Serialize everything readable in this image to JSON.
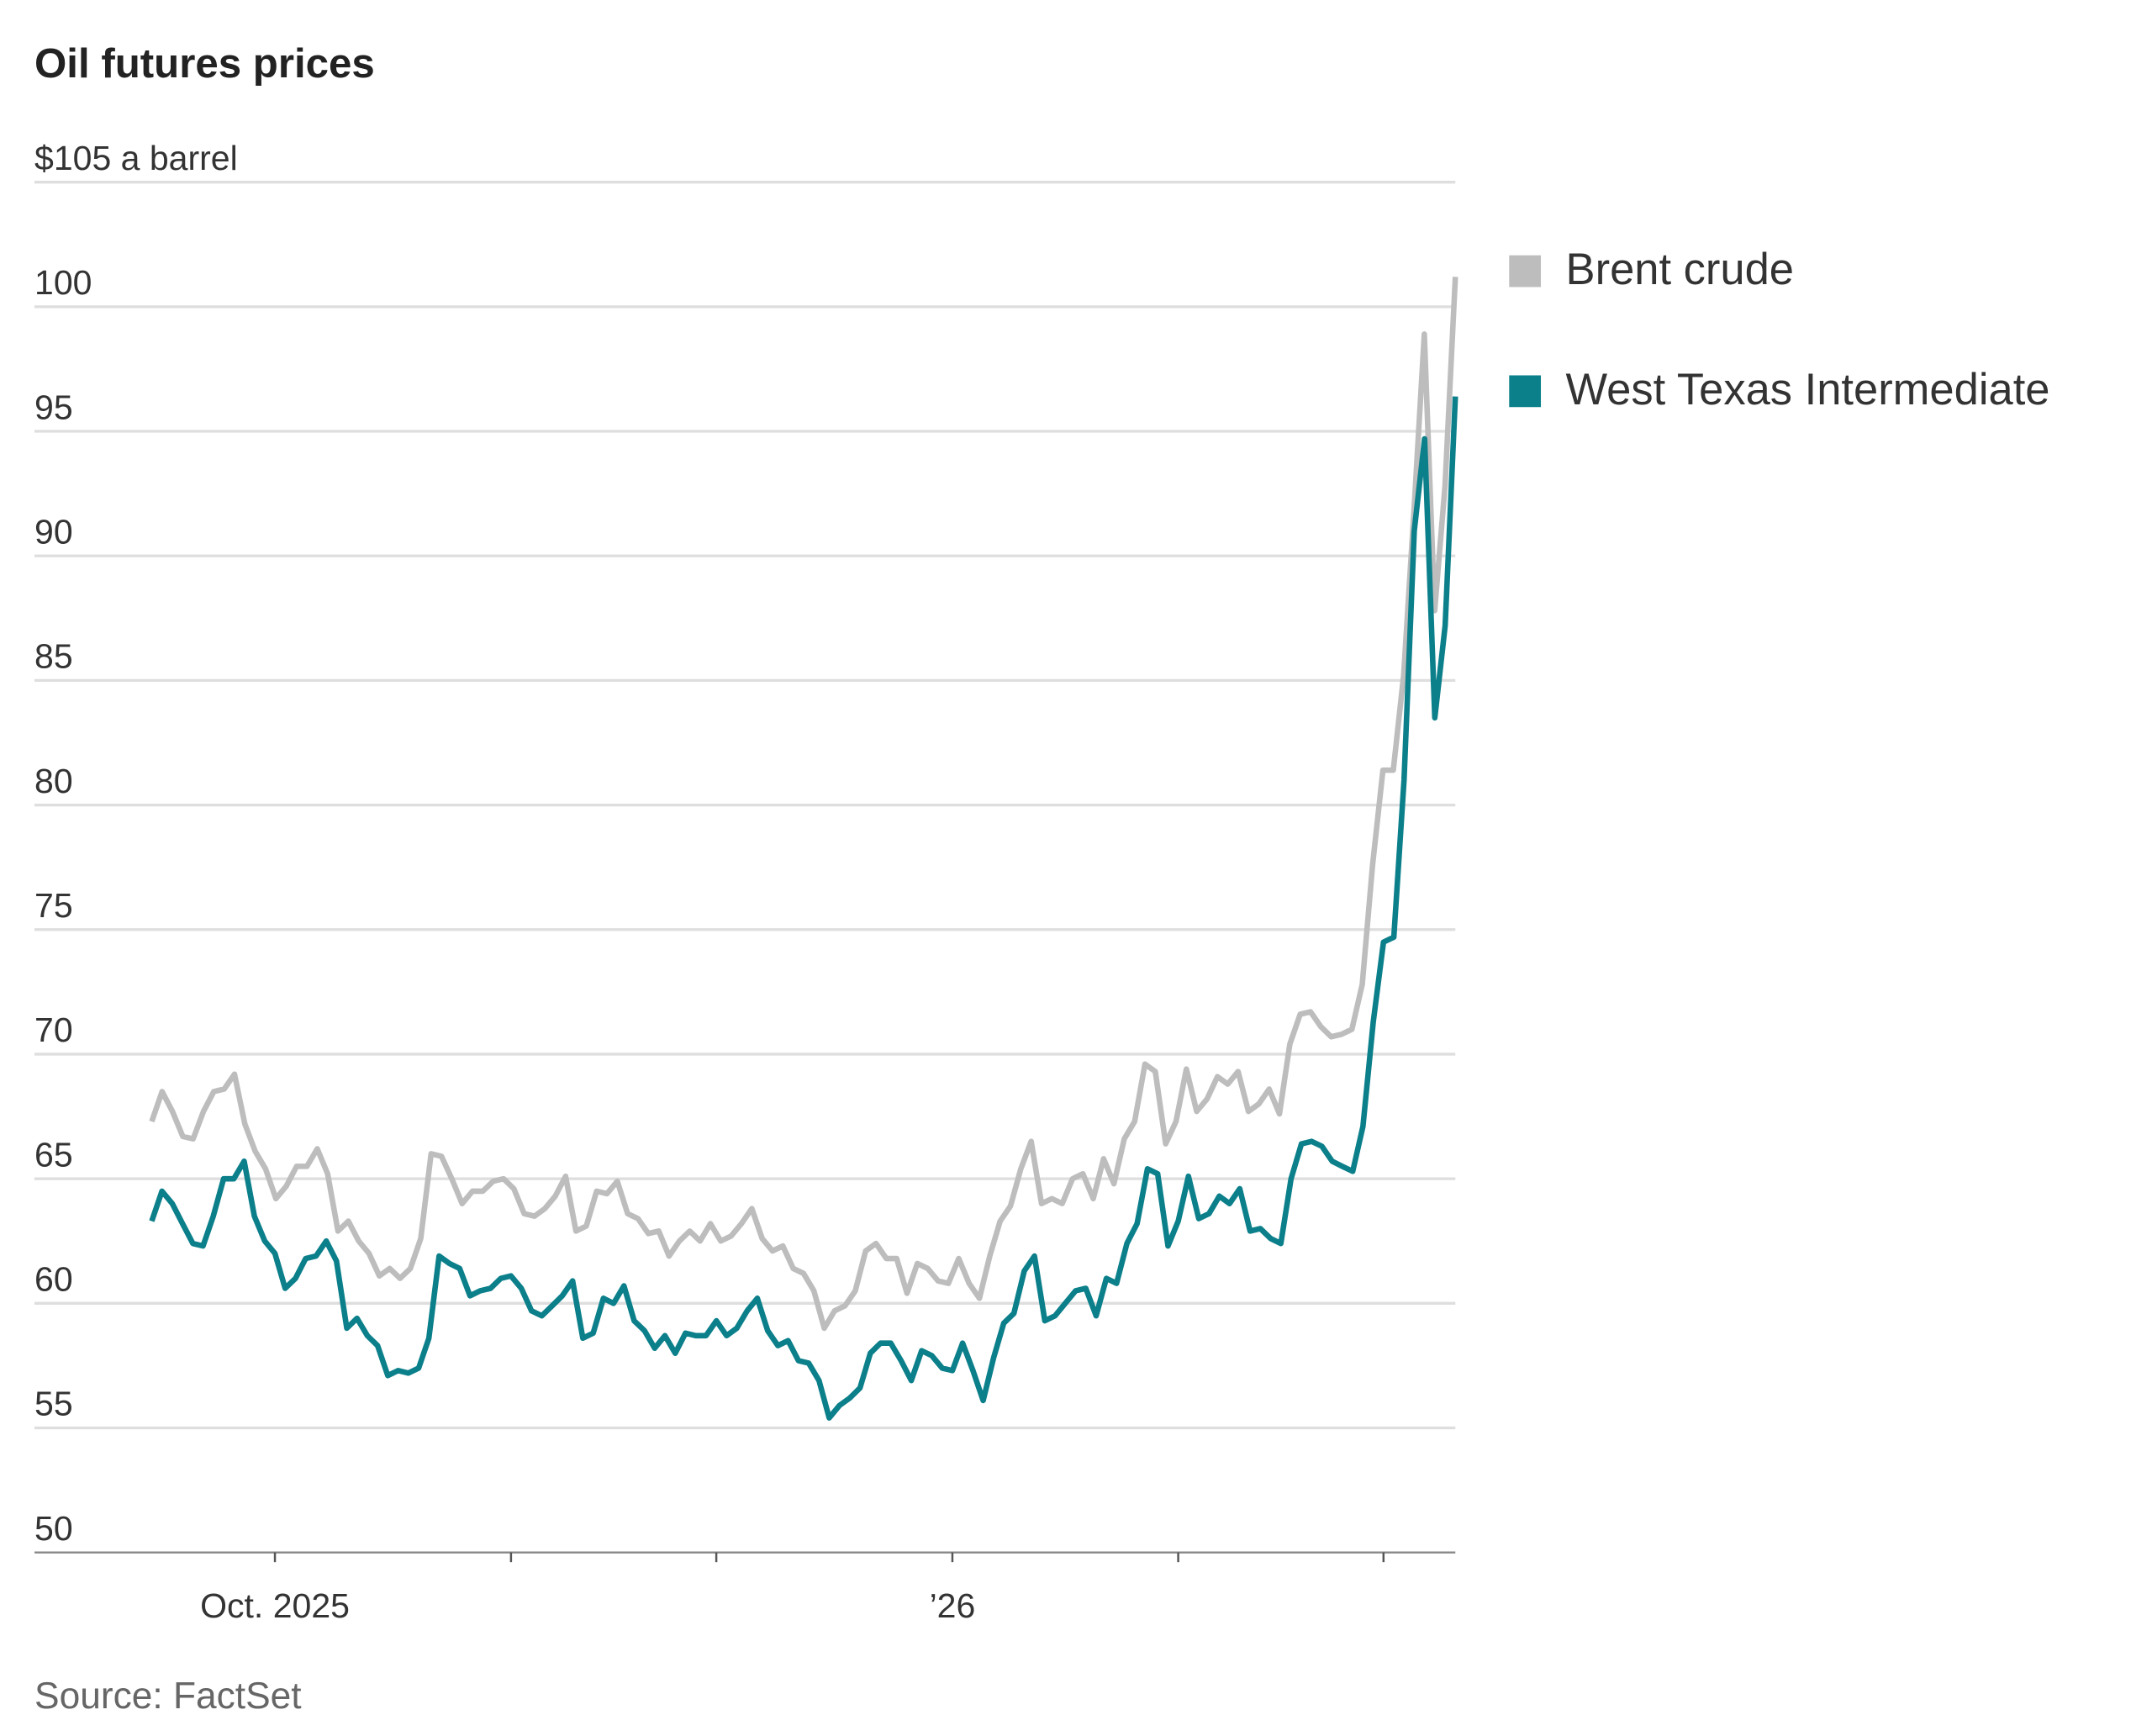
{
  "chart_data": {
    "type": "line",
    "title": "Oil futures prices",
    "ylabel": "$105 a barrel",
    "source": "Source: FactSet",
    "ylim": [
      50,
      105
    ],
    "yticks": [
      {
        "value": 105,
        "label": "$105 a barrel"
      },
      {
        "value": 100,
        "label": "100"
      },
      {
        "value": 95,
        "label": "95"
      },
      {
        "value": 90,
        "label": "90"
      },
      {
        "value": 85,
        "label": "85"
      },
      {
        "value": 80,
        "label": "80"
      },
      {
        "value": 75,
        "label": "75"
      },
      {
        "value": 70,
        "label": "70"
      },
      {
        "value": 65,
        "label": "65"
      },
      {
        "value": 60,
        "label": "60"
      },
      {
        "value": 55,
        "label": "55"
      },
      {
        "value": 50,
        "label": "50"
      }
    ],
    "xticks": [
      {
        "index": 12,
        "label": "Oct. 2025"
      },
      {
        "index": 35,
        "label": ""
      },
      {
        "index": 55,
        "label": ""
      },
      {
        "index": 78,
        "label": "’26"
      },
      {
        "index": 100,
        "label": ""
      },
      {
        "index": 120,
        "label": ""
      }
    ],
    "grid": true,
    "legend_position": "right",
    "series": [
      {
        "name": "Brent crude",
        "color": "#bdbdbd",
        "values": [
          67.3,
          68.5,
          67.7,
          66.7,
          66.6,
          67.7,
          68.5,
          68.6,
          69.2,
          67.2,
          66.1,
          65.4,
          64.2,
          64.7,
          65.5,
          65.5,
          66.2,
          65.2,
          62.9,
          63.3,
          62.5,
          62.0,
          61.1,
          61.4,
          61.0,
          61.4,
          62.6,
          66.0,
          65.9,
          65.0,
          64.0,
          64.5,
          64.5,
          64.9,
          65.0,
          64.6,
          63.6,
          63.5,
          63.8,
          64.3,
          65.1,
          62.9,
          63.1,
          64.5,
          64.4,
          64.9,
          63.6,
          63.4,
          62.8,
          62.9,
          61.9,
          62.5,
          62.9,
          62.5,
          63.2,
          62.5,
          62.7,
          63.2,
          63.8,
          62.6,
          62.1,
          62.3,
          61.4,
          61.2,
          60.5,
          59.0,
          59.7,
          59.9,
          60.5,
          62.1,
          62.4,
          61.8,
          61.8,
          60.4,
          61.6,
          61.4,
          60.9,
          60.8,
          61.8,
          60.8,
          60.2,
          61.9,
          63.3,
          63.9,
          65.4,
          66.5,
          64.0,
          64.2,
          64.0,
          65.0,
          65.2,
          64.2,
          65.8,
          64.8,
          66.6,
          67.3,
          69.6,
          69.3,
          66.4,
          67.3,
          69.4,
          67.7,
          68.2,
          69.1,
          68.8,
          69.3,
          67.7,
          68.0,
          68.6,
          67.6,
          70.4,
          71.6,
          71.7,
          71.1,
          70.7,
          70.8,
          71.0,
          72.8,
          77.6,
          81.4,
          81.4,
          85.2,
          91.8,
          98.9,
          87.8,
          92.8,
          101.2
        ]
      },
      {
        "name": "West Texas Intermediate",
        "color": "#0b7f8a",
        "values": [
          63.3,
          64.5,
          64.0,
          63.2,
          62.4,
          62.3,
          63.5,
          65.0,
          65.0,
          65.7,
          63.5,
          62.5,
          62.0,
          60.6,
          61.0,
          61.8,
          61.9,
          62.5,
          61.7,
          59.0,
          59.4,
          58.7,
          58.3,
          57.1,
          57.3,
          57.2,
          57.4,
          58.6,
          61.9,
          61.6,
          61.4,
          60.3,
          60.5,
          60.6,
          61.0,
          61.1,
          60.6,
          59.7,
          59.5,
          59.9,
          60.3,
          60.9,
          58.6,
          58.8,
          60.2,
          60.0,
          60.7,
          59.3,
          58.9,
          58.2,
          58.7,
          58.0,
          58.8,
          58.7,
          58.7,
          59.3,
          58.7,
          59.0,
          59.7,
          60.2,
          58.9,
          58.3,
          58.5,
          57.7,
          57.6,
          56.9,
          55.4,
          55.9,
          56.2,
          56.6,
          58.0,
          58.4,
          58.4,
          57.7,
          56.9,
          58.1,
          57.9,
          57.4,
          57.3,
          58.4,
          57.3,
          56.1,
          57.8,
          59.2,
          59.6,
          61.3,
          61.9,
          59.3,
          59.5,
          60.0,
          60.5,
          60.6,
          59.5,
          61.0,
          60.8,
          62.4,
          63.2,
          65.4,
          65.2,
          62.3,
          63.3,
          65.1,
          63.4,
          63.6,
          64.3,
          64.0,
          64.6,
          62.9,
          63.0,
          62.6,
          62.4,
          65.0,
          66.4,
          66.5,
          66.3,
          65.7,
          65.5,
          65.3,
          67.1,
          71.3,
          74.5,
          74.7,
          81.0,
          91.0,
          94.7,
          83.5,
          87.2,
          96.4
        ]
      }
    ]
  }
}
